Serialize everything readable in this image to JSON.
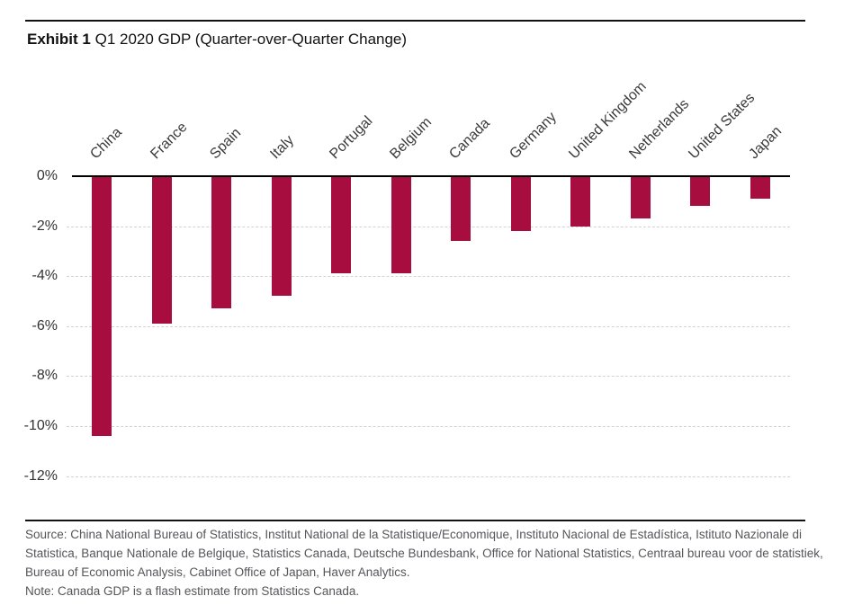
{
  "exhibit": {
    "label": "Exhibit 1",
    "title": "Q1 2020 GDP (Quarter-over-Quarter Change)"
  },
  "chart_data": {
    "type": "bar",
    "title": "Q1 2020 GDP (Quarter-over-Quarter Change)",
    "categories": [
      "China",
      "France",
      "Spain",
      "Italy",
      "Portugal",
      "Belgium",
      "Canada",
      "Germany",
      "United Kingdom",
      "Netherlands",
      "United States",
      "Japan"
    ],
    "values": [
      -10.4,
      -5.9,
      -5.3,
      -4.8,
      -3.9,
      -3.9,
      -2.6,
      -2.2,
      -2.0,
      -1.7,
      -1.2,
      -0.9
    ],
    "unit": "%",
    "y_ticks": [
      "0%",
      "-2%",
      "-4%",
      "-6%",
      "-8%",
      "-10%",
      "-12%"
    ],
    "ylim": [
      -12,
      0
    ],
    "xlabel": "",
    "ylabel": "",
    "bar_color": "#A80D3F",
    "gridlines": "horizontal-dashed",
    "legend": "none"
  },
  "footer": {
    "source_lines": [
      "Source: China National Bureau of Statistics, Institut National de la Statistique/Economique, Instituto Nacional de Estadística, Istituto Nazionale di",
      "Statistica, Banque Nationale de Belgique, Statistics Canada, Deutsche Bundesbank, Office for National Statistics, Centraal bureau voor de statistiek,",
      "Bureau of Economic Analysis, Cabinet Office of Japan, Haver Analytics."
    ],
    "note": "Note: Canada GDP is a flash estimate from Statistics Canada."
  }
}
